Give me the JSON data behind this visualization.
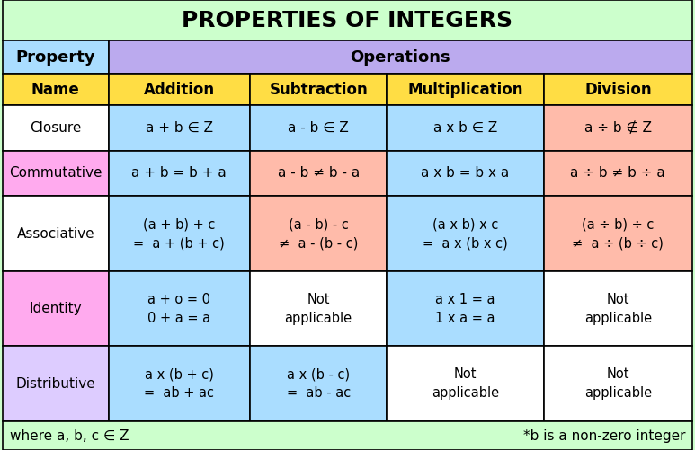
{
  "title": "PROPERTIES OF INTEGERS",
  "title_bg": "#ccffcc",
  "header1_text": "Property",
  "header1_bg": "#aaddff",
  "header2_text": "Operations",
  "header2_bg": "#bbaaee",
  "col_headers": [
    "Name",
    "Addition",
    "Subtraction",
    "Multiplication",
    "Division"
  ],
  "col_header_bg": "#ffdd44",
  "rows": [
    {
      "name": "Closure",
      "name_bg": "#ffffff",
      "cells": [
        {
          "text": "a + b ∈ Z",
          "bg": "#aaddff"
        },
        {
          "text": "a - b ∈ Z",
          "bg": "#aaddff"
        },
        {
          "text": "a x b ∈ Z",
          "bg": "#aaddff"
        },
        {
          "text": "a ÷ b ∉ Z",
          "bg": "#ffbbaa"
        }
      ]
    },
    {
      "name": "Commutative",
      "name_bg": "#ffaaee",
      "cells": [
        {
          "text": "a + b = b + a",
          "bg": "#aaddff"
        },
        {
          "text": "a - b ≠ b - a",
          "bg": "#ffbbaa"
        },
        {
          "text": "a x b = b x a",
          "bg": "#aaddff"
        },
        {
          "text": "a ÷ b ≠ b ÷ a",
          "bg": "#ffbbaa"
        }
      ]
    },
    {
      "name": "Associative",
      "name_bg": "#ffffff",
      "cells": [
        {
          "text": "(a + b) + c\n=  a + (b + c)",
          "bg": "#aaddff"
        },
        {
          "text": "(a - b) - c\n≠  a - (b - c)",
          "bg": "#ffbbaa"
        },
        {
          "text": "(a x b) x c\n=  a x (b x c)",
          "bg": "#aaddff"
        },
        {
          "text": "(a ÷ b) ÷ c\n≠  a ÷ (b ÷ c)",
          "bg": "#ffbbaa"
        }
      ]
    },
    {
      "name": "Identity",
      "name_bg": "#ffaaee",
      "cells": [
        {
          "text": "a + o = 0\n0 + a = a",
          "bg": "#aaddff"
        },
        {
          "text": "Not\napplicable",
          "bg": "#ffffff"
        },
        {
          "text": "a x 1 = a\n1 x a = a",
          "bg": "#aaddff"
        },
        {
          "text": "Not\napplicable",
          "bg": "#ffffff"
        }
      ]
    },
    {
      "name": "Distributive",
      "name_bg": "#ddccff",
      "cells": [
        {
          "text": "a x (b + c)\n=  ab + ac",
          "bg": "#aaddff"
        },
        {
          "text": "a x (b - c)\n=  ab - ac",
          "bg": "#aaddff"
        },
        {
          "text": "Not\napplicable",
          "bg": "#ffffff"
        },
        {
          "text": "Not\napplicable",
          "bg": "#ffffff"
        }
      ]
    }
  ],
  "footer_left": "where a, b, c ∈ Z",
  "footer_right": "*b is a non-zero integer"
}
